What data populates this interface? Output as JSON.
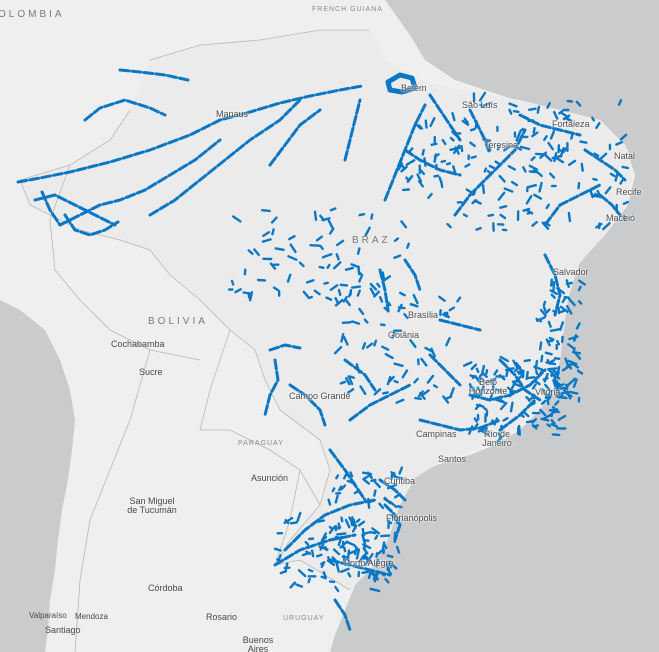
{
  "map": {
    "colors": {
      "water": "#c9cbcd",
      "land": "#efefef",
      "brazil": "#ebebeb",
      "border": "#b8b8b8",
      "river": "#0a77c4",
      "label": "#555555"
    },
    "countries": {
      "colombia": "OLOMBIA",
      "french_guiana": "FRENCH GUIANA",
      "brazil": "BRAZ",
      "bolivia": "BOLIVIA",
      "paraguay": "PARAGUAY",
      "uruguay": "URUGUAY"
    },
    "cities": {
      "belem": "Belém",
      "sao_luis": "São Luís",
      "fortaleza": "Fortaleza",
      "teresina": "Teresina",
      "natal": "Natal",
      "recife": "Recife",
      "maceio": "Maceió",
      "manaus": "Manaus",
      "salvador": "Salvador",
      "brasilia": "Brasília",
      "goiania": "Goiânia",
      "cochabamba": "Cochabamba",
      "sucre": "Sucre",
      "campo_grande": "Campo Grande",
      "belo_horizonte": "Belo Horizonte",
      "vitoria": "Vitória",
      "campinas": "Campinas",
      "rio": "Rio de Janeiro",
      "santos": "Santos",
      "asuncion": "Asunción",
      "curitiba": "Curitiba",
      "san_miguel": "San Miguel de Tucumán",
      "florianopolis": "Florianópolis",
      "porto_alegre": "Porto Alegre",
      "cordoba": "Córdoba",
      "valparaiso": "Valparaíso",
      "mendoza": "Mendoza",
      "santiago": "Santiago",
      "rosario": "Rosario",
      "buenos_aires": "Buenos Aires"
    }
  }
}
